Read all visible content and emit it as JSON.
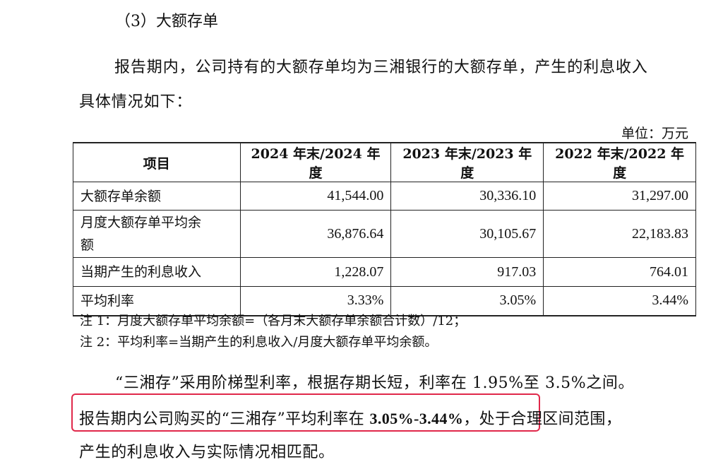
{
  "heading": "（3）大额存单",
  "intro": {
    "line1": "报告期内，公司持有的大额存单均为三湘银行的大额存单，产生的利息收入",
    "line2": "具体情况如下："
  },
  "unit_label": "单位：万元",
  "table": {
    "headers": [
      "项目",
      "2024 年末/2024 年度",
      "2023 年末/2023 年度",
      "2022 年末/2022 年度"
    ],
    "rows": [
      {
        "item": "大额存单余额",
        "v2024": "41,544.00",
        "v2023": "30,336.10",
        "v2022": "31,297.00"
      },
      {
        "item_line1": "月度大额存单平均余",
        "item_line2": "额",
        "v2024": "36,876.64",
        "v2023": "30,105.67",
        "v2022": "22,183.83"
      },
      {
        "item": "当期产生的利息收入",
        "v2024": "1,228.07",
        "v2023": "917.03",
        "v2022": "764.01"
      },
      {
        "item": "平均利率",
        "v2024": "3.33%",
        "v2023": "3.05%",
        "v2022": "3.44%"
      }
    ]
  },
  "notes": [
    "注 1：月度大额存单平均余额=（各月末大额存单余额合计数）/12；",
    "注 2：平均利率=当期产生的利息收入/月度大额存单平均余额。"
  ],
  "para2": {
    "line1": "“三湘存”采用阶梯型利率，根据存期长短，利率在 1.95%至 3.5%之间。",
    "line2_highlight_prefix": "报告期内公司购买的“三湘存”平均利率在 ",
    "line2_highlight_rate": "3.05%-3.44%",
    "line2_rest": "，处于合理区间范围，",
    "line3": "产生的利息收入与实际情况相匹配。"
  },
  "colors": {
    "highlight_border": "#e0284a",
    "text": "#111111"
  }
}
